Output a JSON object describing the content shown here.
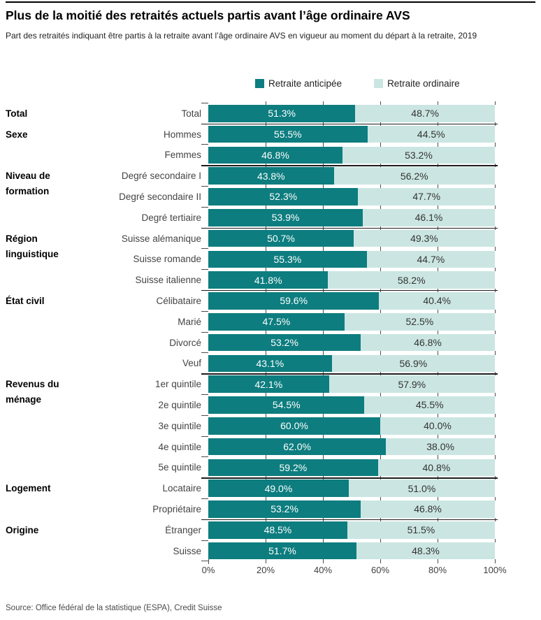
{
  "header": {
    "title": "Plus de la moitié des retraités actuels partis avant l’âge ordinaire AVS",
    "subtitle": "Part des retraités indiquant être partis à la retraite avant l’âge ordinaire AVS en vigueur au moment du départ à la retraite, 2019"
  },
  "legend": [
    {
      "label": "Retraite anticipée",
      "color": "#0d7d7f"
    },
    {
      "label": "Retraite ordinaire",
      "color": "#cbe6e2"
    }
  ],
  "chart_data": {
    "type": "bar",
    "orientation": "horizontal",
    "stacked": true,
    "unit": "%",
    "xlim": [
      0,
      100
    ],
    "x_ticks": [
      "0%",
      "20%",
      "40%",
      "60%",
      "80%",
      "100%"
    ],
    "grid": "ticks-between-rows",
    "legend_position": "top",
    "series": [
      {
        "name": "Retraite anticipée",
        "color": "#0d7d7f",
        "text_color": "#ffffff"
      },
      {
        "name": "Retraite ordinaire",
        "color": "#cbe6e2",
        "text_color": "#333333"
      }
    ],
    "groups": [
      {
        "group": "Total",
        "rows": [
          {
            "label": "Total",
            "anticipee": 51.3,
            "ordinaire": 48.7
          }
        ]
      },
      {
        "group": "Sexe",
        "rows": [
          {
            "label": "Hommes",
            "anticipee": 55.5,
            "ordinaire": 44.5
          },
          {
            "label": "Femmes",
            "anticipee": 46.8,
            "ordinaire": 53.2
          }
        ]
      },
      {
        "group": "Niveau de formation",
        "rows": [
          {
            "label": "Degré secondaire I",
            "anticipee": 43.8,
            "ordinaire": 56.2
          },
          {
            "label": "Degré secondaire II",
            "anticipee": 52.3,
            "ordinaire": 47.7
          },
          {
            "label": "Degré tertiaire",
            "anticipee": 53.9,
            "ordinaire": 46.1
          }
        ]
      },
      {
        "group": "Région linguistique",
        "rows": [
          {
            "label": "Suisse alémanique",
            "anticipee": 50.7,
            "ordinaire": 49.3
          },
          {
            "label": "Suisse romande",
            "anticipee": 55.3,
            "ordinaire": 44.7
          },
          {
            "label": "Suisse italienne",
            "anticipee": 41.8,
            "ordinaire": 58.2
          }
        ]
      },
      {
        "group": "État civil",
        "rows": [
          {
            "label": "Célibataire",
            "anticipee": 59.6,
            "ordinaire": 40.4
          },
          {
            "label": "Marié",
            "anticipee": 47.5,
            "ordinaire": 52.5
          },
          {
            "label": "Divorcé",
            "anticipee": 53.2,
            "ordinaire": 46.8
          },
          {
            "label": "Veuf",
            "anticipee": 43.1,
            "ordinaire": 56.9
          }
        ]
      },
      {
        "group": "Revenus du ménage",
        "rows": [
          {
            "label": "1er quintile",
            "anticipee": 42.1,
            "ordinaire": 57.9
          },
          {
            "label": "2e quintile",
            "anticipee": 54.5,
            "ordinaire": 45.5
          },
          {
            "label": "3e quintile",
            "anticipee": 60.0,
            "ordinaire": 40.0
          },
          {
            "label": "4e quintile",
            "anticipee": 62.0,
            "ordinaire": 38.0
          },
          {
            "label": "5e quintile",
            "anticipee": 59.2,
            "ordinaire": 40.8
          }
        ]
      },
      {
        "group": "Logement",
        "rows": [
          {
            "label": "Locataire",
            "anticipee": 49.0,
            "ordinaire": 51.0
          },
          {
            "label": "Propriétaire",
            "anticipee": 53.2,
            "ordinaire": 46.8
          }
        ]
      },
      {
        "group": "Origine",
        "rows": [
          {
            "label": "Étranger",
            "anticipee": 48.5,
            "ordinaire": 51.5
          },
          {
            "label": "Suisse",
            "anticipee": 51.7,
            "ordinaire": 48.3
          }
        ]
      }
    ]
  },
  "source": "Source: Office fédéral de la statistique (ESPA), Credit Suisse"
}
